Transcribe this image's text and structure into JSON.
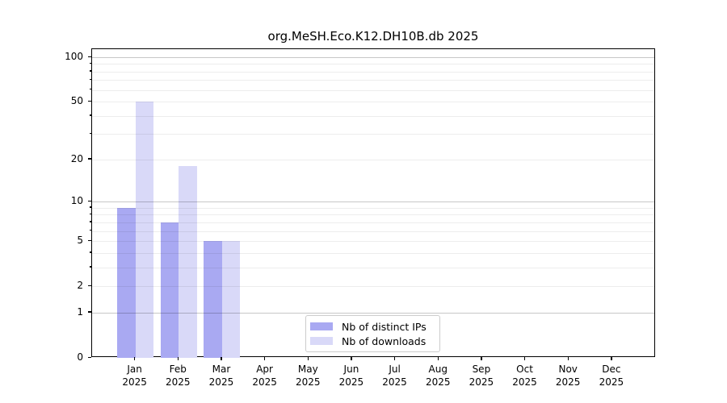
{
  "title": "org.MeSH.Eco.K12.DH10B.db 2025",
  "chart_data": {
    "type": "bar",
    "title": "org.MeSH.Eco.K12.DH10B.db 2025",
    "categories": [
      "Jan",
      "Feb",
      "Mar",
      "Apr",
      "May",
      "Jun",
      "Jul",
      "Aug",
      "Sep",
      "Oct",
      "Nov",
      "Dec"
    ],
    "year_label": "2025",
    "series": [
      {
        "name": "Nb of distinct IPs",
        "color": "#a9a9f2",
        "values": [
          9,
          7,
          5,
          0,
          0,
          0,
          0,
          0,
          0,
          0,
          0,
          0
        ]
      },
      {
        "name": "Nb of downloads",
        "color": "#d9d9f8",
        "values": [
          50,
          18,
          5,
          0,
          0,
          0,
          0,
          0,
          0,
          0,
          0,
          0
        ]
      }
    ],
    "yticks": [
      0,
      1,
      2,
      5,
      10,
      20,
      50,
      100
    ],
    "ylim": [
      0,
      100
    ],
    "yscale": "log10(value+1)",
    "xlabel": "",
    "ylabel": "",
    "grid": "horizontal, minor and major",
    "legend_position": "lower center"
  }
}
